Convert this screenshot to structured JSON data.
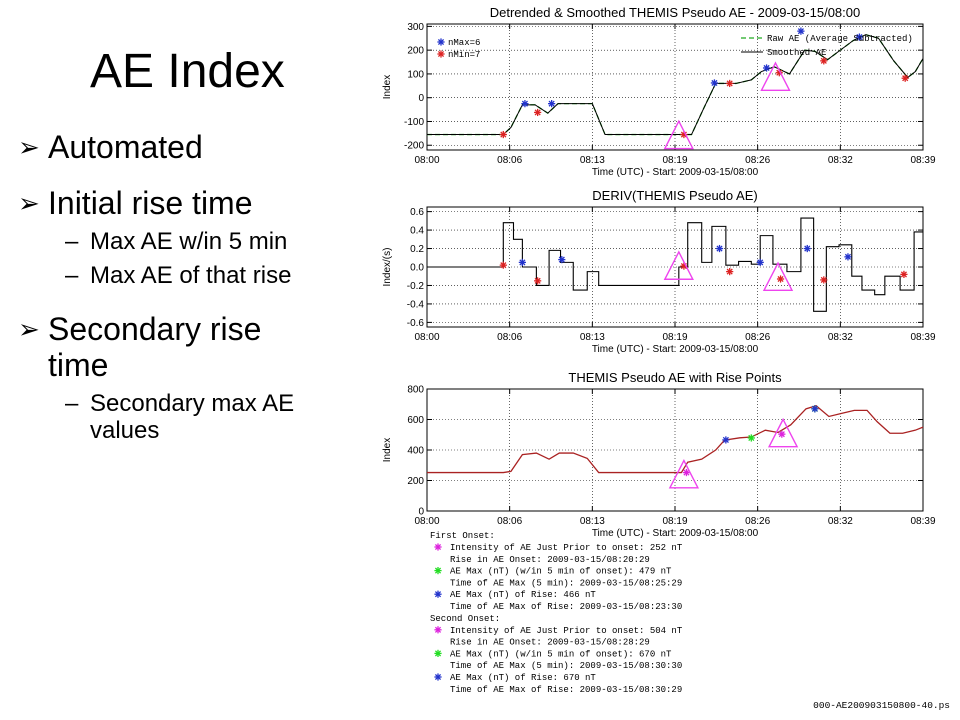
{
  "slide": {
    "title": "AE Index",
    "bullets": [
      {
        "level": 1,
        "text": "Automated"
      },
      {
        "level": 1,
        "text": "Initial rise time"
      },
      {
        "level": 2,
        "text": "Max AE w/in 5 min"
      },
      {
        "level": 2,
        "text": "Max AE of that rise"
      },
      {
        "level": 1,
        "text": "Secondary rise",
        "text2": "time"
      },
      {
        "level": 2,
        "text": "Secondary max AE",
        "text2": "values"
      }
    ]
  },
  "colors": {
    "raw": "#22aa22",
    "smoothed": "#000000",
    "onset": "#dd2222",
    "max": "#2233cc",
    "rise": "#dd22dd",
    "ae_line": "#aa2222",
    "triangle": "#ee44ee",
    "max5": "#22dd22"
  },
  "chart_data": [
    {
      "type": "line",
      "title": "Detrended & Smoothed THEMIS Pseudo AE - 2009-03-15/08:00",
      "xlabel": "Time (UTC) - Start: 2009-03-15/08:00",
      "ylabel": "Index",
      "xticks": [
        "08:00",
        "08:06",
        "08:13",
        "08:19",
        "08:26",
        "08:32",
        "08:39"
      ],
      "yticks": [
        "300",
        "200",
        "100",
        "0",
        "-100",
        "-200"
      ],
      "ylim": [
        -220,
        310
      ],
      "xlim": [
        0,
        39
      ],
      "grid": "dotted",
      "legend": {
        "entries": [
          {
            "label": "Raw AE (Average Subtracted)",
            "style": "dashed-green"
          },
          {
            "label": "Smoothed AE",
            "style": "solid-black"
          }
        ],
        "markers": [
          "nMax=6",
          "nMin=7"
        ]
      },
      "series": [
        {
          "name": "Raw AE (Average Subtracted)",
          "x": [
            0,
            6,
            6.6,
            7.5,
            8.5,
            9.5,
            10.3,
            11.5,
            13,
            14,
            20,
            20.8,
            21.8,
            22.7,
            23.5,
            24.3,
            25.5,
            26.3,
            27.3,
            28.5,
            29.7,
            30.5,
            31.5,
            32.5,
            33.5,
            34.5,
            35.5,
            36.7,
            37.8,
            38.4,
            39
          ],
          "y": [
            -155,
            -155,
            -125,
            -30,
            -30,
            -65,
            -25,
            -25,
            -25,
            -155,
            -155,
            -155,
            -40,
            60,
            60,
            60,
            75,
            110,
            130,
            100,
            200,
            195,
            160,
            200,
            240,
            265,
            250,
            155,
            85,
            110,
            165
          ]
        },
        {
          "name": "Smoothed AE",
          "x": [
            0,
            6,
            6.6,
            7.5,
            8.5,
            9.5,
            10.3,
            11.5,
            13,
            14,
            20,
            20.8,
            21.8,
            22.7,
            23.5,
            24.3,
            25.5,
            26.3,
            27.3,
            28.5,
            29.7,
            30.5,
            31.5,
            32.5,
            33.5,
            34.5,
            35.5,
            36.7,
            37.8,
            38.4,
            39
          ],
          "y": [
            -155,
            -155,
            -125,
            -30,
            -30,
            -65,
            -25,
            -25,
            -25,
            -155,
            -155,
            -155,
            -40,
            60,
            60,
            60,
            75,
            110,
            130,
            100,
            200,
            195,
            160,
            200,
            240,
            265,
            250,
            155,
            85,
            110,
            165
          ]
        }
      ],
      "max_points": {
        "x": [
          7.7,
          9.8,
          22.6,
          26.7,
          29.4,
          34.0
        ],
        "y": [
          -25,
          -25,
          62,
          125,
          280,
          255
        ]
      },
      "min_points": {
        "x": [
          6.0,
          8.7,
          20.2,
          23.8,
          27.7,
          31.2,
          37.6
        ],
        "y": [
          -155,
          -62,
          -155,
          60,
          105,
          155,
          82
        ]
      },
      "triangles": {
        "x": [
          19.8,
          27.4
        ],
        "y": [
          -170,
          75
        ]
      }
    },
    {
      "type": "line",
      "title": "DERIV(THEMIS Pseudo AE)",
      "xlabel": "Time (UTC) - Start: 2009-03-15/08:00",
      "ylabel": "Index/(s)",
      "xticks": [
        "08:00",
        "08:06",
        "08:13",
        "08:19",
        "08:26",
        "08:32",
        "08:39"
      ],
      "yticks": [
        "0.6",
        "0.4",
        "0.2",
        "0.0",
        "-0.2",
        "-0.4",
        "-0.6"
      ],
      "ylim": [
        -0.65,
        0.65
      ],
      "xlim": [
        0,
        39
      ],
      "grid": "dotted",
      "series": [
        {
          "name": "",
          "step": true,
          "x": [
            0,
            6,
            6.8,
            7.5,
            8.6,
            9.6,
            10.5,
            11.5,
            12.6,
            13.5,
            19.8,
            20.5,
            21.6,
            22.4,
            23.5,
            24.5,
            25.5,
            26.2,
            27.2,
            28.3,
            29.4,
            30.4,
            31.4,
            32.4,
            33.4,
            34.2,
            35.2,
            36.0,
            37.2,
            38.3,
            39
          ],
          "y": [
            0,
            0.48,
            0.3,
            0,
            -0.2,
            0.18,
            0.05,
            -0.25,
            -0.05,
            -0.2,
            0,
            0.48,
            0.05,
            0.44,
            0.02,
            0.06,
            0.03,
            0.34,
            0.03,
            -0.05,
            0.53,
            -0.48,
            0.22,
            0.24,
            -0.1,
            -0.25,
            -0.3,
            -0.1,
            -0.25,
            0.38,
            0.38
          ]
        }
      ],
      "max_points": {
        "x": [
          7.5,
          10.6,
          23.0,
          26.2,
          29.9,
          33.1
        ],
        "y": [
          0.05,
          0.08,
          0.2,
          0.05,
          0.2,
          0.11
        ]
      },
      "min_points": {
        "x": [
          6.0,
          8.7,
          20.2,
          23.8,
          27.8,
          31.2,
          37.5
        ],
        "y": [
          0.02,
          -0.15,
          0.01,
          -0.05,
          -0.13,
          -0.14,
          -0.08
        ]
      },
      "triangles": {
        "x": [
          19.8,
          27.6
        ],
        "y": [
          -0.02,
          -0.14
        ]
      }
    },
    {
      "type": "line",
      "title": "THEMIS Pseudo AE with Rise Points",
      "xlabel": "Time (UTC) - Start: 2009-03-15/08:00",
      "ylabel": "Index",
      "xticks": [
        "08:00",
        "08:06",
        "08:13",
        "08:19",
        "08:26",
        "08:32",
        "08:39"
      ],
      "yticks": [
        "800",
        "600",
        "400",
        "200",
        "0"
      ],
      "ylim": [
        0,
        800
      ],
      "xlim": [
        0,
        39
      ],
      "grid": "dotted",
      "series": [
        {
          "name": "",
          "x": [
            0,
            6,
            6.6,
            7.5,
            8.6,
            9.6,
            10.4,
            11.5,
            12.6,
            13.5,
            20,
            20.5,
            21.6,
            22.7,
            23.4,
            24.6,
            25.5,
            26.6,
            27.6,
            28.6,
            29.8,
            30.6,
            31.6,
            32.6,
            33.6,
            34.6,
            35.4,
            36.4,
            37.4,
            38.4,
            39
          ],
          "y": [
            252,
            252,
            260,
            370,
            380,
            340,
            380,
            380,
            345,
            252,
            252,
            320,
            340,
            400,
            465,
            480,
            485,
            530,
            515,
            565,
            670,
            690,
            620,
            640,
            660,
            660,
            585,
            510,
            510,
            530,
            550
          ]
        }
      ],
      "rise_points": {
        "x": [
          20.4,
          27.9
        ],
        "y": [
          252,
          504
        ]
      },
      "max5_points": {
        "x": [
          25.5,
          30.5
        ],
        "y": [
          479,
          670
        ]
      },
      "rise_max_points": {
        "x": [
          23.5,
          30.5
        ],
        "y": [
          466,
          670
        ]
      },
      "triangles": {
        "x": [
          20.2,
          28.0
        ],
        "y": [
          220,
          490
        ]
      }
    }
  ],
  "onset_info": {
    "first_header": "First Onset:",
    "first_lines": [
      "Intensity of AE Just Prior to onset: 252 nT",
      "Rise in AE Onset: 2009-03-15/08:20:29",
      "AE Max (nT) (w/in 5 min of onset): 479 nT",
      "Time of AE Max (5 min): 2009-03-15/08:25:29",
      "AE Max (nT) of Rise: 466 nT",
      "Time of AE Max of Rise: 2009-03-15/08:23:30"
    ],
    "second_header": "Second Onset:",
    "second_lines": [
      "Intensity of AE Just Prior to onset: 504 nT",
      "Rise in AE Onset: 2009-03-15/08:28:29",
      "AE Max (nT) (w/in 5 min of onset): 670 nT",
      "Time of AE Max (5 min): 2009-03-15/08:30:30",
      "AE Max (nT) of Rise: 670 nT",
      "Time of AE Max of Rise: 2009-03-15/08:30:29"
    ],
    "footer_file": "000-AE200903150800-40.ps"
  }
}
